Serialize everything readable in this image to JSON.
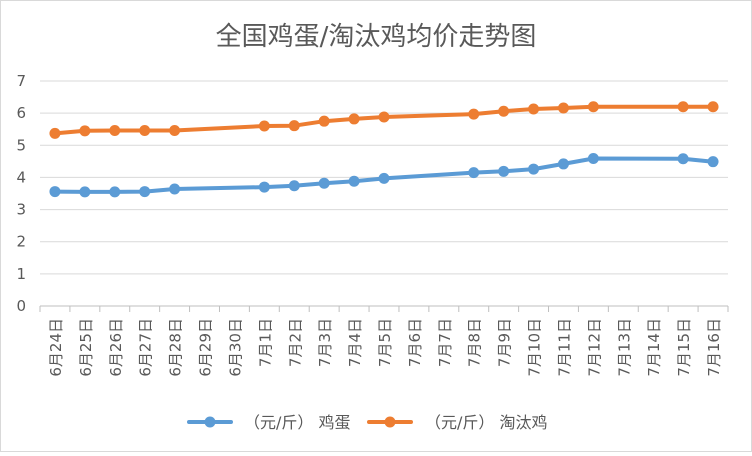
{
  "chart_data": {
    "type": "line",
    "title": "全国鸡蛋/淘汰鸡均价走势图",
    "categories": [
      "6月24日",
      "6月25日",
      "6月26日",
      "6月27日",
      "6月28日",
      "6月29日",
      "6月30日",
      "7月1日",
      "7月2日",
      "7月3日",
      "7月4日",
      "7月5日",
      "7月6日",
      "7月7日",
      "7月8日",
      "7月9日",
      "7月10日",
      "7月11日",
      "7月12日",
      "7月13日",
      "7月14日",
      "7月15日",
      "7月16日"
    ],
    "ylim": [
      0,
      7
    ],
    "yticks": [
      0,
      1,
      2,
      3,
      4,
      5,
      6,
      7
    ],
    "grid": true,
    "legend_position": "bottom",
    "series": [
      {
        "name": "（元/斤） 鸡蛋",
        "color": "#5b9bd5",
        "values": [
          3.56,
          3.55,
          3.55,
          3.56,
          3.64,
          null,
          null,
          3.7,
          3.74,
          3.82,
          3.88,
          3.97,
          null,
          null,
          4.15,
          4.19,
          4.26,
          4.42,
          4.59,
          null,
          null,
          4.58,
          4.49
        ]
      },
      {
        "name": "（元/斤） 淘汰鸡",
        "color": "#ed7d31",
        "values": [
          5.37,
          5.45,
          5.46,
          5.46,
          5.46,
          null,
          null,
          5.6,
          5.61,
          5.75,
          5.82,
          5.88,
          null,
          null,
          5.97,
          6.06,
          6.13,
          6.16,
          6.2,
          null,
          null,
          6.2,
          6.2
        ]
      }
    ]
  }
}
